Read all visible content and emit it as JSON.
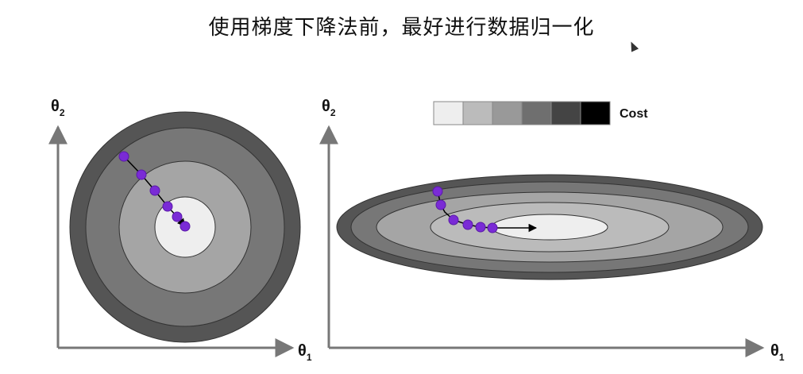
{
  "title": "使用梯度下降法前，最好进行数据归一化",
  "left_plot": {
    "y_axis": {
      "symbol": "θ",
      "sub": "2"
    },
    "x_axis": {
      "symbol": "θ",
      "sub": "1"
    }
  },
  "right_plot": {
    "y_axis": {
      "symbol": "θ",
      "sub": "2"
    },
    "x_axis": {
      "symbol": "θ",
      "sub": "1"
    }
  },
  "legend": {
    "label": "Cost",
    "swatches": [
      "#eeeeee",
      "#bbbbbb",
      "#999999",
      "#6f6f6f",
      "#444444",
      "#000000"
    ]
  },
  "colors": {
    "contour_fills": [
      "#555555",
      "#777777",
      "#a5a5a5",
      "#eeeeee"
    ],
    "path_point": "#7a2bd6",
    "path_line": "#000000",
    "axis": "#777777"
  }
}
